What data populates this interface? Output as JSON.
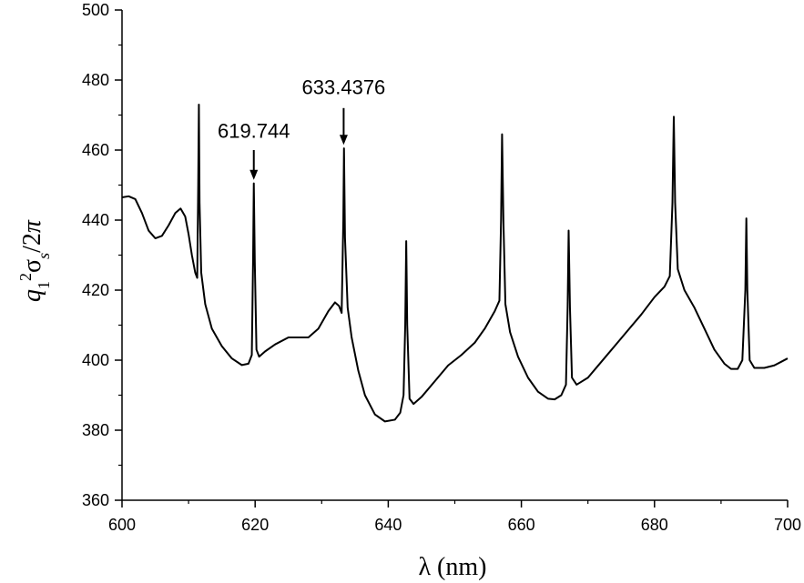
{
  "chart_data": {
    "type": "line",
    "xlabel": "λ (nm)",
    "ylabel": {
      "parts": [
        {
          "text": "q",
          "style": "italic"
        },
        {
          "text": "1",
          "shift": "sub"
        },
        {
          "text": "2",
          "shift": "super"
        },
        {
          "text": "σ"
        },
        {
          "text": "s",
          "style": "italic",
          "shift": "sub"
        },
        {
          "text": "/2"
        },
        {
          "text": "π",
          "style": "italic"
        }
      ]
    },
    "xlim": [
      600,
      700
    ],
    "ylim": [
      360,
      500
    ],
    "xticks": [
      600,
      620,
      640,
      660,
      680,
      700
    ],
    "yticks": [
      360,
      380,
      400,
      420,
      440,
      460,
      480,
      500
    ],
    "grid": false,
    "series": [
      {
        "color": "#000000",
        "points": [
          [
            600,
            446.5
          ],
          [
            601,
            446.8
          ],
          [
            602,
            446
          ],
          [
            603,
            442
          ],
          [
            604,
            437
          ],
          [
            605,
            434.8
          ],
          [
            606,
            435.5
          ],
          [
            607,
            438.5
          ],
          [
            608,
            442
          ],
          [
            608.8,
            443.3
          ],
          [
            609.5,
            441
          ],
          [
            610,
            436
          ],
          [
            610.5,
            430
          ],
          [
            611,
            425
          ],
          [
            611.3,
            423.5
          ],
          [
            611.45,
            450
          ],
          [
            611.55,
            473
          ],
          [
            611.65,
            445
          ],
          [
            611.9,
            425
          ],
          [
            612.5,
            416
          ],
          [
            613.5,
            409
          ],
          [
            615,
            404
          ],
          [
            616.5,
            400.5
          ],
          [
            618,
            398.6
          ],
          [
            619,
            399
          ],
          [
            619.5,
            401.5
          ],
          [
            619.7,
            430
          ],
          [
            619.8,
            450.5
          ],
          [
            619.95,
            428
          ],
          [
            620.2,
            403
          ],
          [
            620.6,
            401
          ],
          [
            621.5,
            402.5
          ],
          [
            623,
            404.5
          ],
          [
            625,
            406.5
          ],
          [
            627,
            406.5
          ],
          [
            628,
            406.5
          ],
          [
            629.5,
            409
          ],
          [
            631,
            414
          ],
          [
            632,
            416.5
          ],
          [
            632.6,
            415.5
          ],
          [
            633,
            413.5
          ],
          [
            633.25,
            440
          ],
          [
            633.35,
            460.5
          ],
          [
            633.5,
            435
          ],
          [
            633.9,
            415
          ],
          [
            634.5,
            406.5
          ],
          [
            635.5,
            397
          ],
          [
            636.5,
            390
          ],
          [
            638,
            384.5
          ],
          [
            639.5,
            382.5
          ],
          [
            641,
            383
          ],
          [
            641.8,
            385
          ],
          [
            642.3,
            390
          ],
          [
            642.55,
            410
          ],
          [
            642.7,
            434
          ],
          [
            642.85,
            410
          ],
          [
            643.2,
            389
          ],
          [
            643.8,
            387.5
          ],
          [
            645,
            389.5
          ],
          [
            647,
            394
          ],
          [
            649,
            398.5
          ],
          [
            651,
            401.5
          ],
          [
            653,
            405
          ],
          [
            654.5,
            409
          ],
          [
            656,
            414
          ],
          [
            656.7,
            417
          ],
          [
            656.95,
            440
          ],
          [
            657.1,
            464.5
          ],
          [
            657.3,
            440
          ],
          [
            657.6,
            416
          ],
          [
            658.3,
            408
          ],
          [
            659.5,
            401
          ],
          [
            661,
            395
          ],
          [
            662.5,
            391
          ],
          [
            664,
            389
          ],
          [
            665,
            388.8
          ],
          [
            666,
            390
          ],
          [
            666.7,
            393
          ],
          [
            666.95,
            415
          ],
          [
            667.1,
            437
          ],
          [
            667.3,
            415
          ],
          [
            667.6,
            395
          ],
          [
            668.3,
            393
          ],
          [
            670,
            395
          ],
          [
            672,
            399.5
          ],
          [
            674,
            404
          ],
          [
            676,
            408.5
          ],
          [
            678,
            413
          ],
          [
            680,
            418
          ],
          [
            681.5,
            421
          ],
          [
            682.3,
            424
          ],
          [
            682.7,
            445
          ],
          [
            682.9,
            469.5
          ],
          [
            683.1,
            445
          ],
          [
            683.5,
            426
          ],
          [
            684.5,
            420
          ],
          [
            686,
            415
          ],
          [
            687.5,
            409
          ],
          [
            689,
            403
          ],
          [
            690.5,
            399
          ],
          [
            691.5,
            397.5
          ],
          [
            692.5,
            397.5
          ],
          [
            693.2,
            400
          ],
          [
            693.65,
            420
          ],
          [
            693.8,
            440.5
          ],
          [
            693.95,
            420
          ],
          [
            694.3,
            400
          ],
          [
            695,
            397.8
          ],
          [
            696.5,
            397.8
          ],
          [
            698,
            398.5
          ],
          [
            699,
            399.5
          ],
          [
            700,
            400.5
          ]
        ]
      }
    ],
    "annotations": [
      {
        "label": "619.744",
        "x": 619.8,
        "y_tip": 451.5,
        "y_tail": 460,
        "y_text": 463.5
      },
      {
        "label": "633.4376",
        "x": 633.3,
        "y_tip": 461.5,
        "y_tail": 472,
        "y_text": 476
      }
    ]
  }
}
